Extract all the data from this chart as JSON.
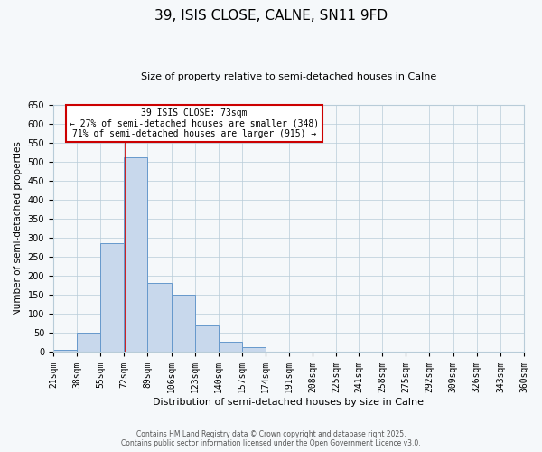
{
  "title": "39, ISIS CLOSE, CALNE, SN11 9FD",
  "subtitle": "Size of property relative to semi-detached houses in Calne",
  "xlabel": "Distribution of semi-detached houses by size in Calne",
  "ylabel": "Number of semi-detached properties",
  "bin_edges": [
    21,
    38,
    55,
    72,
    89,
    106,
    123,
    140,
    157,
    174,
    191,
    208,
    225,
    241,
    258,
    275,
    292,
    309,
    326,
    343,
    360
  ],
  "bin_counts": [
    5,
    50,
    285,
    512,
    182,
    150,
    70,
    27,
    13,
    2,
    0,
    0,
    0,
    0,
    0,
    0,
    0,
    0,
    0,
    0
  ],
  "bar_facecolor": "#c8d8ec",
  "bar_edgecolor": "#6699cc",
  "vline_x": 73,
  "vline_color": "#cc0000",
  "ylim": [
    0,
    650
  ],
  "yticks": [
    0,
    50,
    100,
    150,
    200,
    250,
    300,
    350,
    400,
    450,
    500,
    550,
    600,
    650
  ],
  "tick_labels": [
    "21sqm",
    "38sqm",
    "55sqm",
    "72sqm",
    "89sqm",
    "106sqm",
    "123sqm",
    "140sqm",
    "157sqm",
    "174sqm",
    "191sqm",
    "208sqm",
    "225sqm",
    "241sqm",
    "258sqm",
    "275sqm",
    "292sqm",
    "309sqm",
    "326sqm",
    "343sqm",
    "360sqm"
  ],
  "annotation_title": "39 ISIS CLOSE: 73sqm",
  "annotation_line1": "← 27% of semi-detached houses are smaller (348)",
  "annotation_line2": "71% of semi-detached houses are larger (915) →",
  "annotation_box_color": "#cc0000",
  "footer1": "Contains HM Land Registry data © Crown copyright and database right 2025.",
  "footer2": "Contains public sector information licensed under the Open Government Licence v3.0.",
  "background_color": "#f5f8fa",
  "grid_color": "#b8ccd8"
}
